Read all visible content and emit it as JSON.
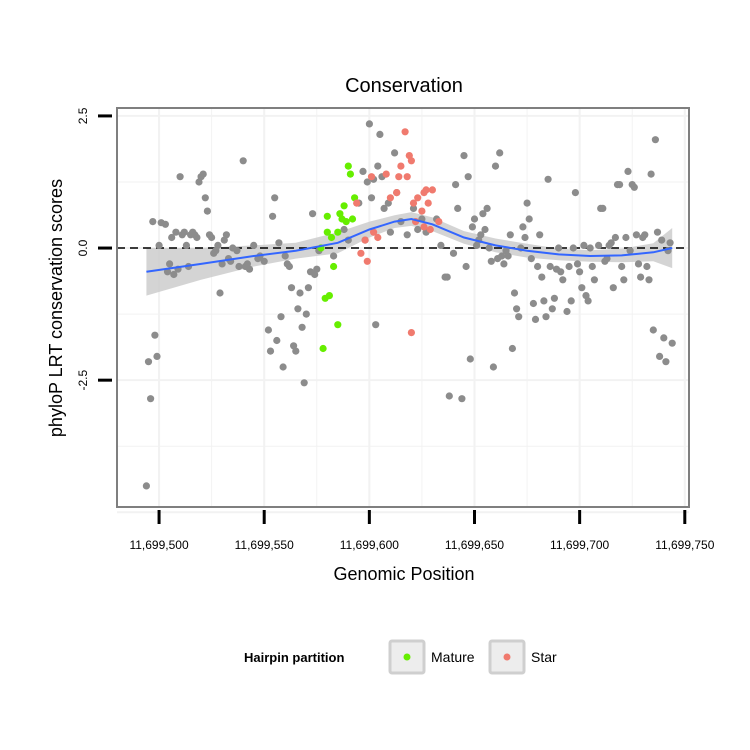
{
  "colors": {
    "other": "#8c8c8c",
    "mature": "#66ee00",
    "star": "#f07a6e",
    "smooth": "#3366ff",
    "ribbon": "#cccccc",
    "panel_border": "#7f7f7f",
    "grid": "#f2f2f2"
  },
  "chart_data": {
    "type": "scatter",
    "title": "Conservation",
    "xlabel": "Genomic Position",
    "ylabel": "phyloP LRT conservation scores",
    "xlim": [
      11699480,
      11699752
    ],
    "ylim": [
      -4.9,
      2.65
    ],
    "x_ticks": [
      11699500,
      11699550,
      11699600,
      11699650,
      11699700,
      11699750
    ],
    "x_tick_labels": [
      "11,699,500",
      "11,699,550",
      "11,699,600",
      "11,699,650",
      "11,699,700",
      "11,699,750"
    ],
    "y_ticks": [
      2.5,
      0.0,
      -2.5
    ],
    "y_tick_labels": [
      "2.5",
      "0.0",
      "-2.5"
    ],
    "reference_line_y": 0,
    "legend": {
      "title": "Hairpin partition",
      "entries": [
        {
          "label": "Mature",
          "series": "Mature"
        },
        {
          "label": "Star",
          "series": "Star"
        }
      ]
    },
    "smooth": {
      "x": [
        11699494,
        11699520,
        11699545,
        11699565,
        11699585,
        11699600,
        11699612,
        11699620,
        11699630,
        11699645,
        11699660,
        11699675,
        11699690,
        11699705,
        11699720,
        11699735,
        11699744
      ],
      "y": [
        -0.45,
        -0.3,
        -0.15,
        -0.05,
        0.1,
        0.35,
        0.5,
        0.55,
        0.45,
        0.2,
        0.05,
        -0.05,
        -0.12,
        -0.15,
        -0.14,
        -0.08,
        0.0
      ],
      "ci_lower": [
        -0.9,
        -0.6,
        -0.35,
        -0.2,
        -0.1,
        0.2,
        0.38,
        0.42,
        0.32,
        0.08,
        -0.08,
        -0.18,
        -0.23,
        -0.26,
        -0.27,
        -0.25,
        -0.38
      ],
      "ci_upper": [
        0.0,
        0.0,
        0.05,
        0.1,
        0.3,
        0.5,
        0.62,
        0.68,
        0.58,
        0.32,
        0.18,
        0.08,
        -0.01,
        -0.04,
        -0.01,
        0.09,
        0.38
      ]
    },
    "series": [
      {
        "name": "Other",
        "color_key": "other",
        "points": [
          [
            11699494,
            -4.5
          ],
          [
            11699495,
            -2.15
          ],
          [
            11699496,
            -2.85
          ],
          [
            11699497,
            0.5
          ],
          [
            11699498,
            -1.65
          ],
          [
            11699499,
            -2.05
          ],
          [
            11699500,
            0.05
          ],
          [
            11699501,
            0.48
          ],
          [
            11699503,
            0.45
          ],
          [
            11699504,
            -0.45
          ],
          [
            11699505,
            -0.3
          ],
          [
            11699506,
            0.2
          ],
          [
            11699507,
            -0.5
          ],
          [
            11699508,
            0.3
          ],
          [
            11699509,
            -0.4
          ],
          [
            11699510,
            1.35
          ],
          [
            11699511,
            0.25
          ],
          [
            11699512,
            0.3
          ],
          [
            11699513,
            0.05
          ],
          [
            11699514,
            -0.35
          ],
          [
            11699515,
            0.25
          ],
          [
            11699516,
            0.3
          ],
          [
            11699517,
            0.25
          ],
          [
            11699518,
            0.2
          ],
          [
            11699519,
            1.25
          ],
          [
            11699520,
            1.35
          ],
          [
            11699521,
            1.4
          ],
          [
            11699522,
            0.95
          ],
          [
            11699523,
            0.7
          ],
          [
            11699524,
            0.25
          ],
          [
            11699525,
            0.2
          ],
          [
            11699526,
            -0.1
          ],
          [
            11699527,
            -0.05
          ],
          [
            11699528,
            0.05
          ],
          [
            11699529,
            -0.85
          ],
          [
            11699530,
            -0.3
          ],
          [
            11699531,
            0.15
          ],
          [
            11699532,
            0.25
          ],
          [
            11699533,
            -0.2
          ],
          [
            11699534,
            -0.25
          ],
          [
            11699535,
            0.0
          ],
          [
            11699537,
            -0.05
          ],
          [
            11699538,
            -0.35
          ],
          [
            11699540,
            1.65
          ],
          [
            11699541,
            -0.35
          ],
          [
            11699542,
            -0.3
          ],
          [
            11699543,
            -0.4
          ],
          [
            11699545,
            0.05
          ],
          [
            11699547,
            -0.2
          ],
          [
            11699548,
            -0.15
          ],
          [
            11699550,
            -0.25
          ],
          [
            11699552,
            -1.55
          ],
          [
            11699553,
            -1.95
          ],
          [
            11699554,
            0.6
          ],
          [
            11699555,
            0.95
          ],
          [
            11699556,
            -1.75
          ],
          [
            11699557,
            0.1
          ],
          [
            11699558,
            -1.3
          ],
          [
            11699559,
            -2.25
          ],
          [
            11699560,
            -0.15
          ],
          [
            11699561,
            -0.3
          ],
          [
            11699562,
            -0.35
          ],
          [
            11699563,
            -0.75
          ],
          [
            11699564,
            -1.85
          ],
          [
            11699565,
            -1.95
          ],
          [
            11699566,
            -1.15
          ],
          [
            11699567,
            -0.85
          ],
          [
            11699568,
            -1.5
          ],
          [
            11699569,
            -2.55
          ],
          [
            11699570,
            -1.25
          ],
          [
            11699571,
            -0.75
          ],
          [
            11699572,
            -0.45
          ],
          [
            11699573,
            0.65
          ],
          [
            11699574,
            -0.5
          ],
          [
            11699575,
            -0.4
          ],
          [
            11699576,
            -0.05
          ],
          [
            11699583,
            -0.15
          ],
          [
            11699588,
            0.35
          ],
          [
            11699590,
            0.15
          ],
          [
            11699595,
            0.85
          ],
          [
            11699597,
            1.45
          ],
          [
            11699598,
            0.15
          ],
          [
            11699599,
            1.25
          ],
          [
            11699600,
            2.35
          ],
          [
            11699601,
            0.95
          ],
          [
            11699602,
            1.3
          ],
          [
            11699603,
            -1.45
          ],
          [
            11699604,
            1.55
          ],
          [
            11699605,
            2.15
          ],
          [
            11699606,
            1.35
          ],
          [
            11699607,
            0.75
          ],
          [
            11699609,
            0.85
          ],
          [
            11699610,
            0.3
          ],
          [
            11699612,
            1.8
          ],
          [
            11699613,
            1.05
          ],
          [
            11699615,
            0.5
          ],
          [
            11699618,
            0.25
          ],
          [
            11699621,
            0.75
          ],
          [
            11699623,
            0.35
          ],
          [
            11699625,
            0.55
          ],
          [
            11699627,
            0.3
          ],
          [
            11699632,
            0.55
          ],
          [
            11699634,
            0.05
          ],
          [
            11699636,
            -0.55
          ],
          [
            11699637,
            -0.55
          ],
          [
            11699638,
            -2.8
          ],
          [
            11699640,
            -0.1
          ],
          [
            11699641,
            1.2
          ],
          [
            11699642,
            0.75
          ],
          [
            11699644,
            -2.85
          ],
          [
            11699645,
            1.75
          ],
          [
            11699646,
            -0.35
          ],
          [
            11699647,
            1.35
          ],
          [
            11699648,
            -2.1
          ],
          [
            11699649,
            0.4
          ],
          [
            11699650,
            0.55
          ],
          [
            11699651,
            0.05
          ],
          [
            11699652,
            0.15
          ],
          [
            11699653,
            0.25
          ],
          [
            11699654,
            0.65
          ],
          [
            11699655,
            0.35
          ],
          [
            11699656,
            0.75
          ],
          [
            11699657,
            0.0
          ],
          [
            11699658,
            -0.25
          ],
          [
            11699659,
            -2.25
          ],
          [
            11699660,
            1.55
          ],
          [
            11699661,
            -0.2
          ],
          [
            11699662,
            1.8
          ],
          [
            11699663,
            -0.15
          ],
          [
            11699664,
            -0.3
          ],
          [
            11699665,
            -0.05
          ],
          [
            11699666,
            -0.15
          ],
          [
            11699667,
            0.25
          ],
          [
            11699668,
            -1.9
          ],
          [
            11699669,
            -0.85
          ],
          [
            11699670,
            -1.15
          ],
          [
            11699671,
            -1.3
          ],
          [
            11699672,
            0.0
          ],
          [
            11699673,
            0.4
          ],
          [
            11699674,
            0.2
          ],
          [
            11699675,
            0.85
          ],
          [
            11699676,
            0.55
          ],
          [
            11699677,
            -0.2
          ],
          [
            11699678,
            -1.05
          ],
          [
            11699679,
            -1.35
          ],
          [
            11699680,
            -0.35
          ],
          [
            11699681,
            0.25
          ],
          [
            11699682,
            -0.55
          ],
          [
            11699683,
            -1.0
          ],
          [
            11699684,
            -1.3
          ],
          [
            11699685,
            1.3
          ],
          [
            11699686,
            -0.35
          ],
          [
            11699687,
            -1.15
          ],
          [
            11699688,
            -0.95
          ],
          [
            11699689,
            -0.4
          ],
          [
            11699690,
            0.0
          ],
          [
            11699691,
            -0.45
          ],
          [
            11699692,
            -0.6
          ],
          [
            11699694,
            -1.2
          ],
          [
            11699695,
            -0.35
          ],
          [
            11699696,
            -1.0
          ],
          [
            11699697,
            0.0
          ],
          [
            11699698,
            1.05
          ],
          [
            11699699,
            -0.3
          ],
          [
            11699700,
            -0.45
          ],
          [
            11699701,
            -0.75
          ],
          [
            11699702,
            0.05
          ],
          [
            11699703,
            -0.9
          ],
          [
            11699704,
            -1.0
          ],
          [
            11699705,
            0.0
          ],
          [
            11699706,
            -0.35
          ],
          [
            11699707,
            -0.6
          ],
          [
            11699709,
            0.05
          ],
          [
            11699710,
            0.75
          ],
          [
            11699711,
            0.75
          ],
          [
            11699712,
            -0.25
          ],
          [
            11699713,
            -0.2
          ],
          [
            11699714,
            0.05
          ],
          [
            11699715,
            0.1
          ],
          [
            11699716,
            -0.75
          ],
          [
            11699717,
            0.2
          ],
          [
            11699718,
            1.2
          ],
          [
            11699719,
            1.2
          ],
          [
            11699720,
            -0.35
          ],
          [
            11699721,
            -0.6
          ],
          [
            11699722,
            0.2
          ],
          [
            11699723,
            1.45
          ],
          [
            11699724,
            -0.05
          ],
          [
            11699725,
            1.2
          ],
          [
            11699726,
            1.15
          ],
          [
            11699727,
            0.25
          ],
          [
            11699728,
            -0.3
          ],
          [
            11699729,
            -0.55
          ],
          [
            11699730,
            0.2
          ],
          [
            11699731,
            0.25
          ],
          [
            11699732,
            -0.35
          ],
          [
            11699733,
            -0.6
          ],
          [
            11699734,
            1.4
          ],
          [
            11699735,
            -1.55
          ],
          [
            11699736,
            2.05
          ],
          [
            11699737,
            0.3
          ],
          [
            11699738,
            -2.05
          ],
          [
            11699739,
            0.15
          ],
          [
            11699740,
            -1.7
          ],
          [
            11699741,
            -2.15
          ],
          [
            11699742,
            -0.05
          ],
          [
            11699743,
            0.1
          ],
          [
            11699744,
            -1.8
          ]
        ]
      },
      {
        "name": "Mature",
        "color_key": "mature",
        "points": [
          [
            11699577,
            0.0
          ],
          [
            11699578,
            -1.9
          ],
          [
            11699579,
            -0.95
          ],
          [
            11699580,
            0.3
          ],
          [
            11699580,
            0.6
          ],
          [
            11699581,
            -0.9
          ],
          [
            11699582,
            0.2
          ],
          [
            11699583,
            -0.35
          ],
          [
            11699585,
            0.3
          ],
          [
            11699585,
            -1.45
          ],
          [
            11699586,
            0.65
          ],
          [
            11699587,
            0.55
          ],
          [
            11699588,
            0.8
          ],
          [
            11699589,
            0.5
          ],
          [
            11699590,
            1.55
          ],
          [
            11699591,
            1.4
          ],
          [
            11699592,
            0.55
          ],
          [
            11699593,
            0.95
          ]
        ]
      },
      {
        "name": "Star",
        "color_key": "star",
        "points": [
          [
            11699594,
            0.85
          ],
          [
            11699596,
            -0.1
          ],
          [
            11699598,
            0.15
          ],
          [
            11699599,
            -0.25
          ],
          [
            11699601,
            1.35
          ],
          [
            11699602,
            0.3
          ],
          [
            11699604,
            0.2
          ],
          [
            11699608,
            1.4
          ],
          [
            11699610,
            0.95
          ],
          [
            11699613,
            1.05
          ],
          [
            11699614,
            1.35
          ],
          [
            11699615,
            1.55
          ],
          [
            11699617,
            2.2
          ],
          [
            11699618,
            1.35
          ],
          [
            11699619,
            1.75
          ],
          [
            11699620,
            1.65
          ],
          [
            11699620,
            -1.6
          ],
          [
            11699621,
            0.85
          ],
          [
            11699622,
            0.5
          ],
          [
            11699623,
            0.95
          ],
          [
            11699625,
            0.7
          ],
          [
            11699626,
            1.05
          ],
          [
            11699626,
            0.4
          ],
          [
            11699627,
            1.1
          ],
          [
            11699628,
            0.85
          ],
          [
            11699629,
            0.35
          ],
          [
            11699630,
            1.1
          ],
          [
            11699633,
            0.5
          ]
        ]
      }
    ]
  }
}
